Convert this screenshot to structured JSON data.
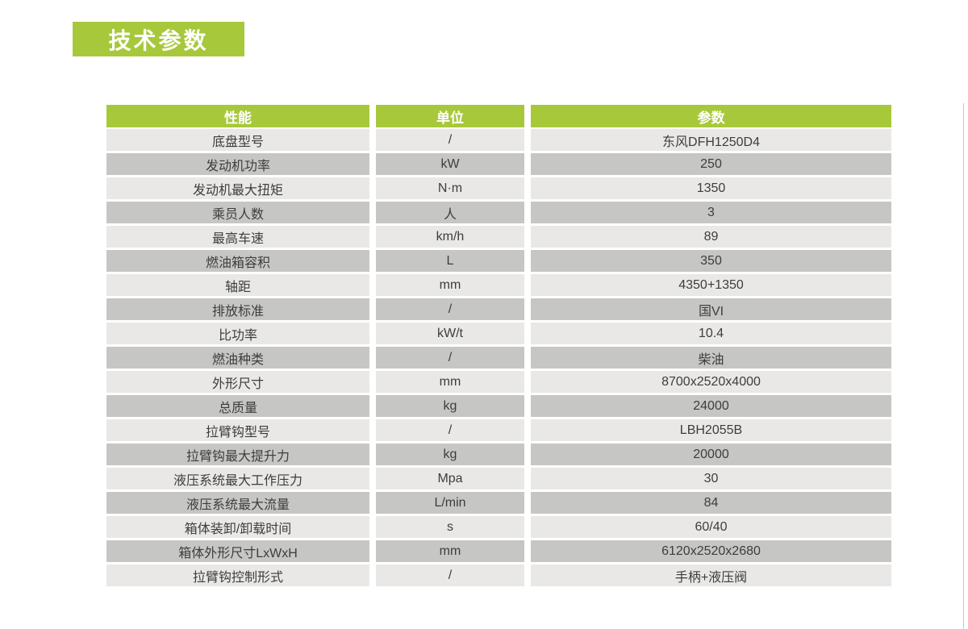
{
  "page_title": "技术参数",
  "colors": {
    "accent_green": "#a8c83c",
    "row_light": "#e9e8e6",
    "row_dark": "#c6c7c4",
    "header_text": "#ffffff",
    "cell_text": "#3d3d3d"
  },
  "table": {
    "headers": [
      "性能",
      "单位",
      "参数"
    ],
    "rows": [
      {
        "label": "底盘型号",
        "unit": "/",
        "value": "东风DFH1250D4"
      },
      {
        "label": "发动机功率",
        "unit": "kW",
        "value": "250"
      },
      {
        "label": "发动机最大扭矩",
        "unit": "N·m",
        "value": "1350"
      },
      {
        "label": "乘员人数",
        "unit": "人",
        "value": "3"
      },
      {
        "label": "最高车速",
        "unit": "km/h",
        "value": "89"
      },
      {
        "label": "燃油箱容积",
        "unit": "L",
        "value": "350"
      },
      {
        "label": "轴距",
        "unit": "mm",
        "value": "4350+1350"
      },
      {
        "label": "排放标准",
        "unit": "/",
        "value": "国VI"
      },
      {
        "label": "比功率",
        "unit": "kW/t",
        "value": "10.4"
      },
      {
        "label": "燃油种类",
        "unit": "/",
        "value": "柴油"
      },
      {
        "label": "外形尺寸",
        "unit": "mm",
        "value": "8700x2520x4000"
      },
      {
        "label": "总质量",
        "unit": "kg",
        "value": "24000"
      },
      {
        "label": "拉臂钩型号",
        "unit": "/",
        "value": "LBH2055B"
      },
      {
        "label": "拉臂钩最大提升力",
        "unit": "kg",
        "value": "20000"
      },
      {
        "label": "液压系统最大工作压力",
        "unit": "Mpa",
        "value": "30"
      },
      {
        "label": "液压系统最大流量",
        "unit": "L/min",
        "value": "84"
      },
      {
        "label": "箱体装卸/卸载时间",
        "unit": "s",
        "value": "60/40"
      },
      {
        "label": "箱体外形尺寸LxWxH",
        "unit": "mm",
        "value": "6120x2520x2680"
      },
      {
        "label": "拉臂钩控制形式",
        "unit": "/",
        "value": "手柄+液压阀"
      }
    ]
  }
}
